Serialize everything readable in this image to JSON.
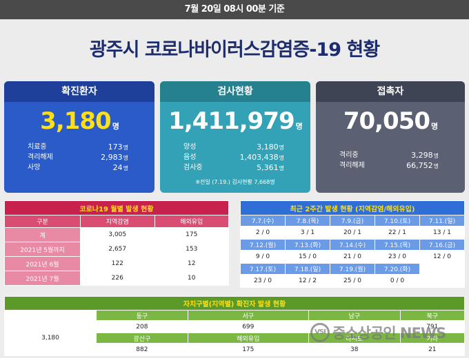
{
  "header": {
    "timestamp": "7월 20일 08시 00분 기준",
    "title": "광주시 코로나바이러스감염증-19 현황"
  },
  "unit": "명",
  "confirmed": {
    "label": "확진환자",
    "total": "3,180",
    "rows": [
      {
        "label": "치료중",
        "value": "173"
      },
      {
        "label": "격리해제",
        "value": "2,983"
      },
      {
        "label": "사망",
        "value": "24"
      }
    ]
  },
  "tests": {
    "label": "검사현황",
    "total": "1,411,979",
    "rows": [
      {
        "label": "양성",
        "value": "3,180"
      },
      {
        "label": "음성",
        "value": "1,403,438"
      },
      {
        "label": "검사중",
        "value": "5,361"
      }
    ],
    "note": "※전일 (7.19.) 검사현황 7,668명"
  },
  "contacts": {
    "label": "접촉자",
    "total": "70,050",
    "rows": [
      {
        "label": "격리중",
        "value": "3,298"
      },
      {
        "label": "격리해제",
        "value": "66,752"
      }
    ]
  },
  "monthly": {
    "title": "코로나19 월별 발생 현황",
    "headers": [
      "구분",
      "지역감염",
      "해외유입"
    ],
    "rows": [
      [
        "계",
        "3,005",
        "175"
      ],
      [
        "2021년 5월까지",
        "2,657",
        "153"
      ],
      [
        "2021년 6월",
        "122",
        "12"
      ],
      [
        "2021년 7월",
        "226",
        "10"
      ]
    ]
  },
  "weekly": {
    "title": "최근 2주간 발생 현황 (지역감염/해외유입)",
    "dates": [
      "7.7.(수)",
      "7.8.(목)",
      "7.9.(금)",
      "7.10.(토)",
      "7.11.(일)",
      "7.12.(월)",
      "7.13.(화)",
      "7.14.(수)",
      "7.15.(목)",
      "7.16.(금)",
      "7.17.(토)",
      "7.18.(일)",
      "7.19.(월)",
      "7.20.(화)"
    ],
    "values": [
      "2 / 0",
      "3 / 1",
      "20 / 1",
      "22 / 1",
      "13 / 1",
      "9 / 0",
      "15 / 0",
      "21 / 0",
      "23 / 0",
      "12 / 0",
      "23 / 0",
      "12 / 2",
      "25 / 0",
      "0 / 0"
    ]
  },
  "district": {
    "title": "자치구별(지역별) 확진자 발생 현황",
    "total_label": "계",
    "total": "3,180",
    "row1_headers": [
      "동구",
      "서구",
      "남구",
      "북구"
    ],
    "row1_values": [
      "208",
      "699",
      "",
      "791"
    ],
    "row2_headers": [
      "광산구",
      "해외유입",
      "타시도",
      "기타"
    ],
    "row2_values": [
      "882",
      "175",
      "38",
      "21"
    ]
  },
  "watermark": {
    "logo": "VSI",
    "text": "중소상공인 NEWS"
  }
}
